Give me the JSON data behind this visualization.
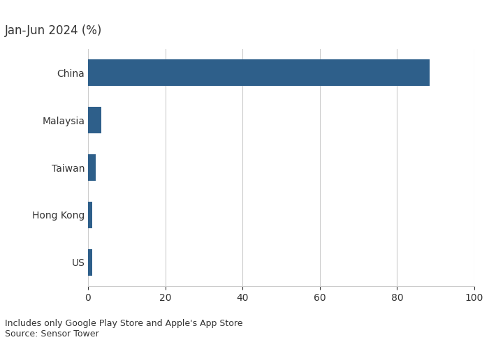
{
  "title": "Jan-Jun 2024 (%)",
  "categories": [
    "US",
    "Hong Kong",
    "Taiwan",
    "Malaysia",
    "China"
  ],
  "values": [
    1.0,
    1.0,
    2.0,
    3.5,
    88.5
  ],
  "bar_color": "#2e5f8a",
  "xlim": [
    0,
    100
  ],
  "xticks": [
    0,
    20,
    40,
    60,
    80,
    100
  ],
  "background_color": "#ffffff",
  "text_color": "#333333",
  "grid_color": "#cccccc",
  "footnote_line1": "Includes only Google Play Store and Apple's App Store",
  "footnote_line2": "Source: Sensor Tower",
  "title_fontsize": 12,
  "label_fontsize": 10,
  "tick_fontsize": 10,
  "footnote_fontsize": 9
}
